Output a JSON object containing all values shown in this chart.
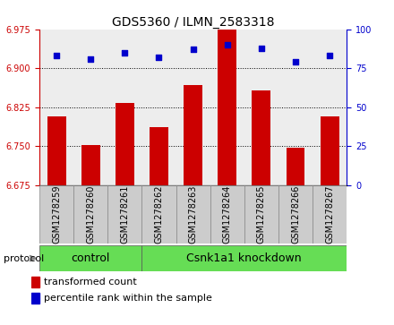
{
  "title": "GDS5360 / ILMN_2583318",
  "samples": [
    "GSM1278259",
    "GSM1278260",
    "GSM1278261",
    "GSM1278262",
    "GSM1278263",
    "GSM1278264",
    "GSM1278265",
    "GSM1278266",
    "GSM1278267"
  ],
  "bar_values": [
    6.808,
    6.752,
    6.833,
    6.786,
    6.868,
    6.975,
    6.858,
    6.748,
    6.808
  ],
  "scatter_values": [
    83,
    81,
    85,
    82,
    87,
    90,
    88,
    79,
    83
  ],
  "ylim_left": [
    6.675,
    6.975
  ],
  "ylim_right": [
    0,
    100
  ],
  "yticks_left": [
    6.675,
    6.75,
    6.825,
    6.9,
    6.975
  ],
  "yticks_right": [
    0,
    25,
    50,
    75,
    100
  ],
  "bar_color": "#cc0000",
  "scatter_color": "#0000cc",
  "bar_bottom": 6.675,
  "n_control": 3,
  "n_knockdown": 6,
  "control_label": "control",
  "knockdown_label": "Csnk1a1 knockdown",
  "protocol_label": "protocol",
  "legend_bar_label": "transformed count",
  "legend_scatter_label": "percentile rank within the sample",
  "green_color": "#66dd55",
  "gray_cell_color": "#cccccc",
  "title_fontsize": 10,
  "tick_fontsize": 7,
  "sample_fontsize": 7
}
